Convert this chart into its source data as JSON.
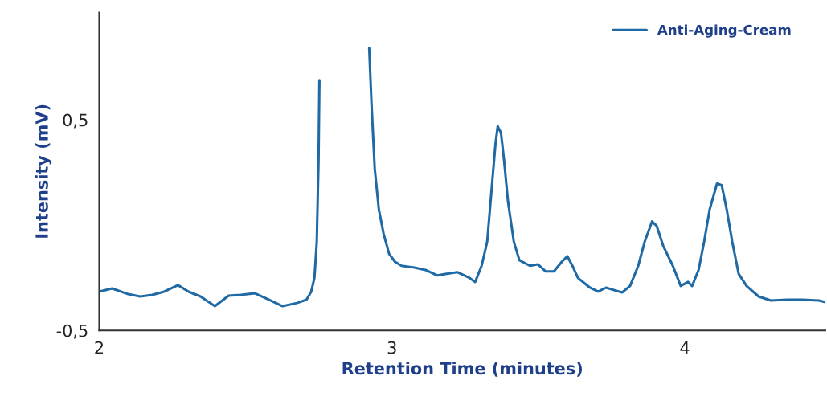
{
  "chart_data": {
    "type": "line",
    "xlabel": "Retention Time (minutes)",
    "ylabel": "Intensity (mV)",
    "xlim": [
      2,
      4.48
    ],
    "xticks": [
      2,
      3,
      4
    ],
    "ylim": [
      -0.5,
      1.01
    ],
    "yticks": [
      {
        "value": -0.5,
        "label": "-0,5"
      },
      {
        "value": 0.5,
        "label": "0,5"
      }
    ],
    "grid": false,
    "legend": "top right",
    "series": [
      {
        "name": "Anti-Aging-Cream",
        "color": "#1f6aa5",
        "x": [
          2.0,
          2.044,
          2.099,
          2.14,
          2.181,
          2.222,
          2.269,
          2.305,
          2.346,
          2.395,
          2.442,
          2.483,
          2.532,
          2.579,
          2.626,
          2.675,
          2.708,
          2.724,
          2.735,
          2.743,
          2.749,
          2.752,
          2.754,
          2.916,
          2.922,
          2.93,
          2.941,
          2.955,
          2.971,
          2.99,
          3.01,
          3.032,
          3.073,
          3.114,
          3.155,
          3.182,
          3.224,
          3.265,
          3.284,
          3.306,
          3.325,
          3.339,
          3.353,
          3.361,
          3.372,
          3.383,
          3.396,
          3.416,
          3.435,
          3.471,
          3.498,
          3.525,
          3.553,
          3.58,
          3.599,
          3.616,
          3.635,
          3.676,
          3.704,
          3.731,
          3.759,
          3.786,
          3.813,
          3.841,
          3.863,
          3.888,
          3.904,
          3.926,
          3.959,
          3.986,
          4.011,
          4.025,
          4.047,
          4.066,
          4.085,
          4.11,
          4.126,
          4.143,
          4.162,
          4.184,
          4.211,
          4.252,
          4.294,
          4.348,
          4.403,
          4.458,
          4.48
        ],
        "values": [
          -0.316,
          -0.301,
          -0.328,
          -0.339,
          -0.331,
          -0.316,
          -0.285,
          -0.316,
          -0.339,
          -0.385,
          -0.335,
          -0.331,
          -0.324,
          -0.354,
          -0.385,
          -0.37,
          -0.354,
          -0.316,
          -0.251,
          -0.079,
          0.304,
          0.688,
          null,
          null,
          0.841,
          0.573,
          0.266,
          0.075,
          -0.04,
          -0.136,
          -0.174,
          -0.193,
          -0.201,
          -0.213,
          -0.239,
          -0.232,
          -0.224,
          -0.251,
          -0.27,
          -0.193,
          -0.079,
          0.151,
          0.381,
          0.469,
          0.439,
          0.304,
          0.113,
          -0.079,
          -0.167,
          -0.193,
          -0.186,
          -0.22,
          -0.22,
          -0.174,
          -0.148,
          -0.193,
          -0.251,
          -0.297,
          -0.316,
          -0.297,
          -0.309,
          -0.32,
          -0.289,
          -0.193,
          -0.079,
          0.017,
          -0.004,
          -0.098,
          -0.193,
          -0.289,
          -0.27,
          -0.289,
          -0.213,
          -0.079,
          0.075,
          0.197,
          0.19,
          0.075,
          -0.079,
          -0.232,
          -0.289,
          -0.339,
          -0.358,
          -0.354,
          -0.354,
          -0.358,
          -0.366
        ]
      }
    ]
  }
}
